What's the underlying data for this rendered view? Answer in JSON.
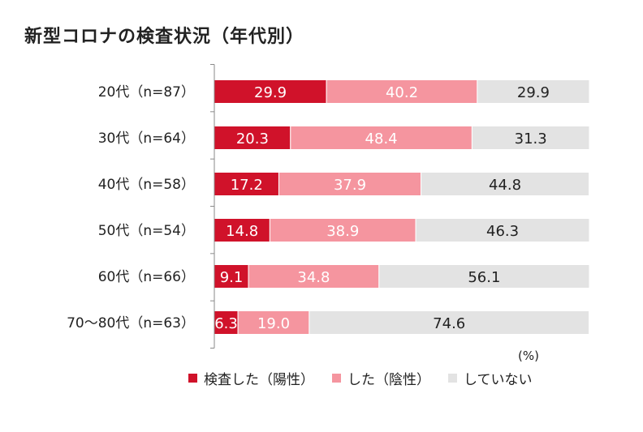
{
  "title": "新型コロナの検査状況（年代別）",
  "unit_label": "(%)",
  "colors": {
    "positive": "#d0122a",
    "negative": "#f5959f",
    "not_tested": "#e3e3e3",
    "axis": "#8a8a8a",
    "label_light": "#ffffff",
    "label_dark": "#222222"
  },
  "chart_data": {
    "type": "bar",
    "orientation": "horizontal",
    "stacked": true,
    "title": "新型コロナの検査状況（年代別）",
    "categories": [
      "20代（n=87）",
      "30代（n=64）",
      "40代（n=58）",
      "50代（n=54）",
      "60代（n=66）",
      "70～80代（n=63）"
    ],
    "series": [
      {
        "name": "検査した（陽性）",
        "values": [
          "29.9",
          "20.3",
          "17.2",
          "14.8",
          "9.1",
          "6.3"
        ]
      },
      {
        "name": "した（陰性）",
        "values": [
          "40.2",
          "48.4",
          "37.9",
          "38.9",
          "34.8",
          "19.0"
        ]
      },
      {
        "name": "していない",
        "values": [
          "29.9",
          "31.3",
          "44.8",
          "46.3",
          "56.1",
          "74.6"
        ]
      }
    ],
    "xlim": [
      0,
      100
    ],
    "xlabel": "(%)",
    "legend_position": "bottom"
  }
}
